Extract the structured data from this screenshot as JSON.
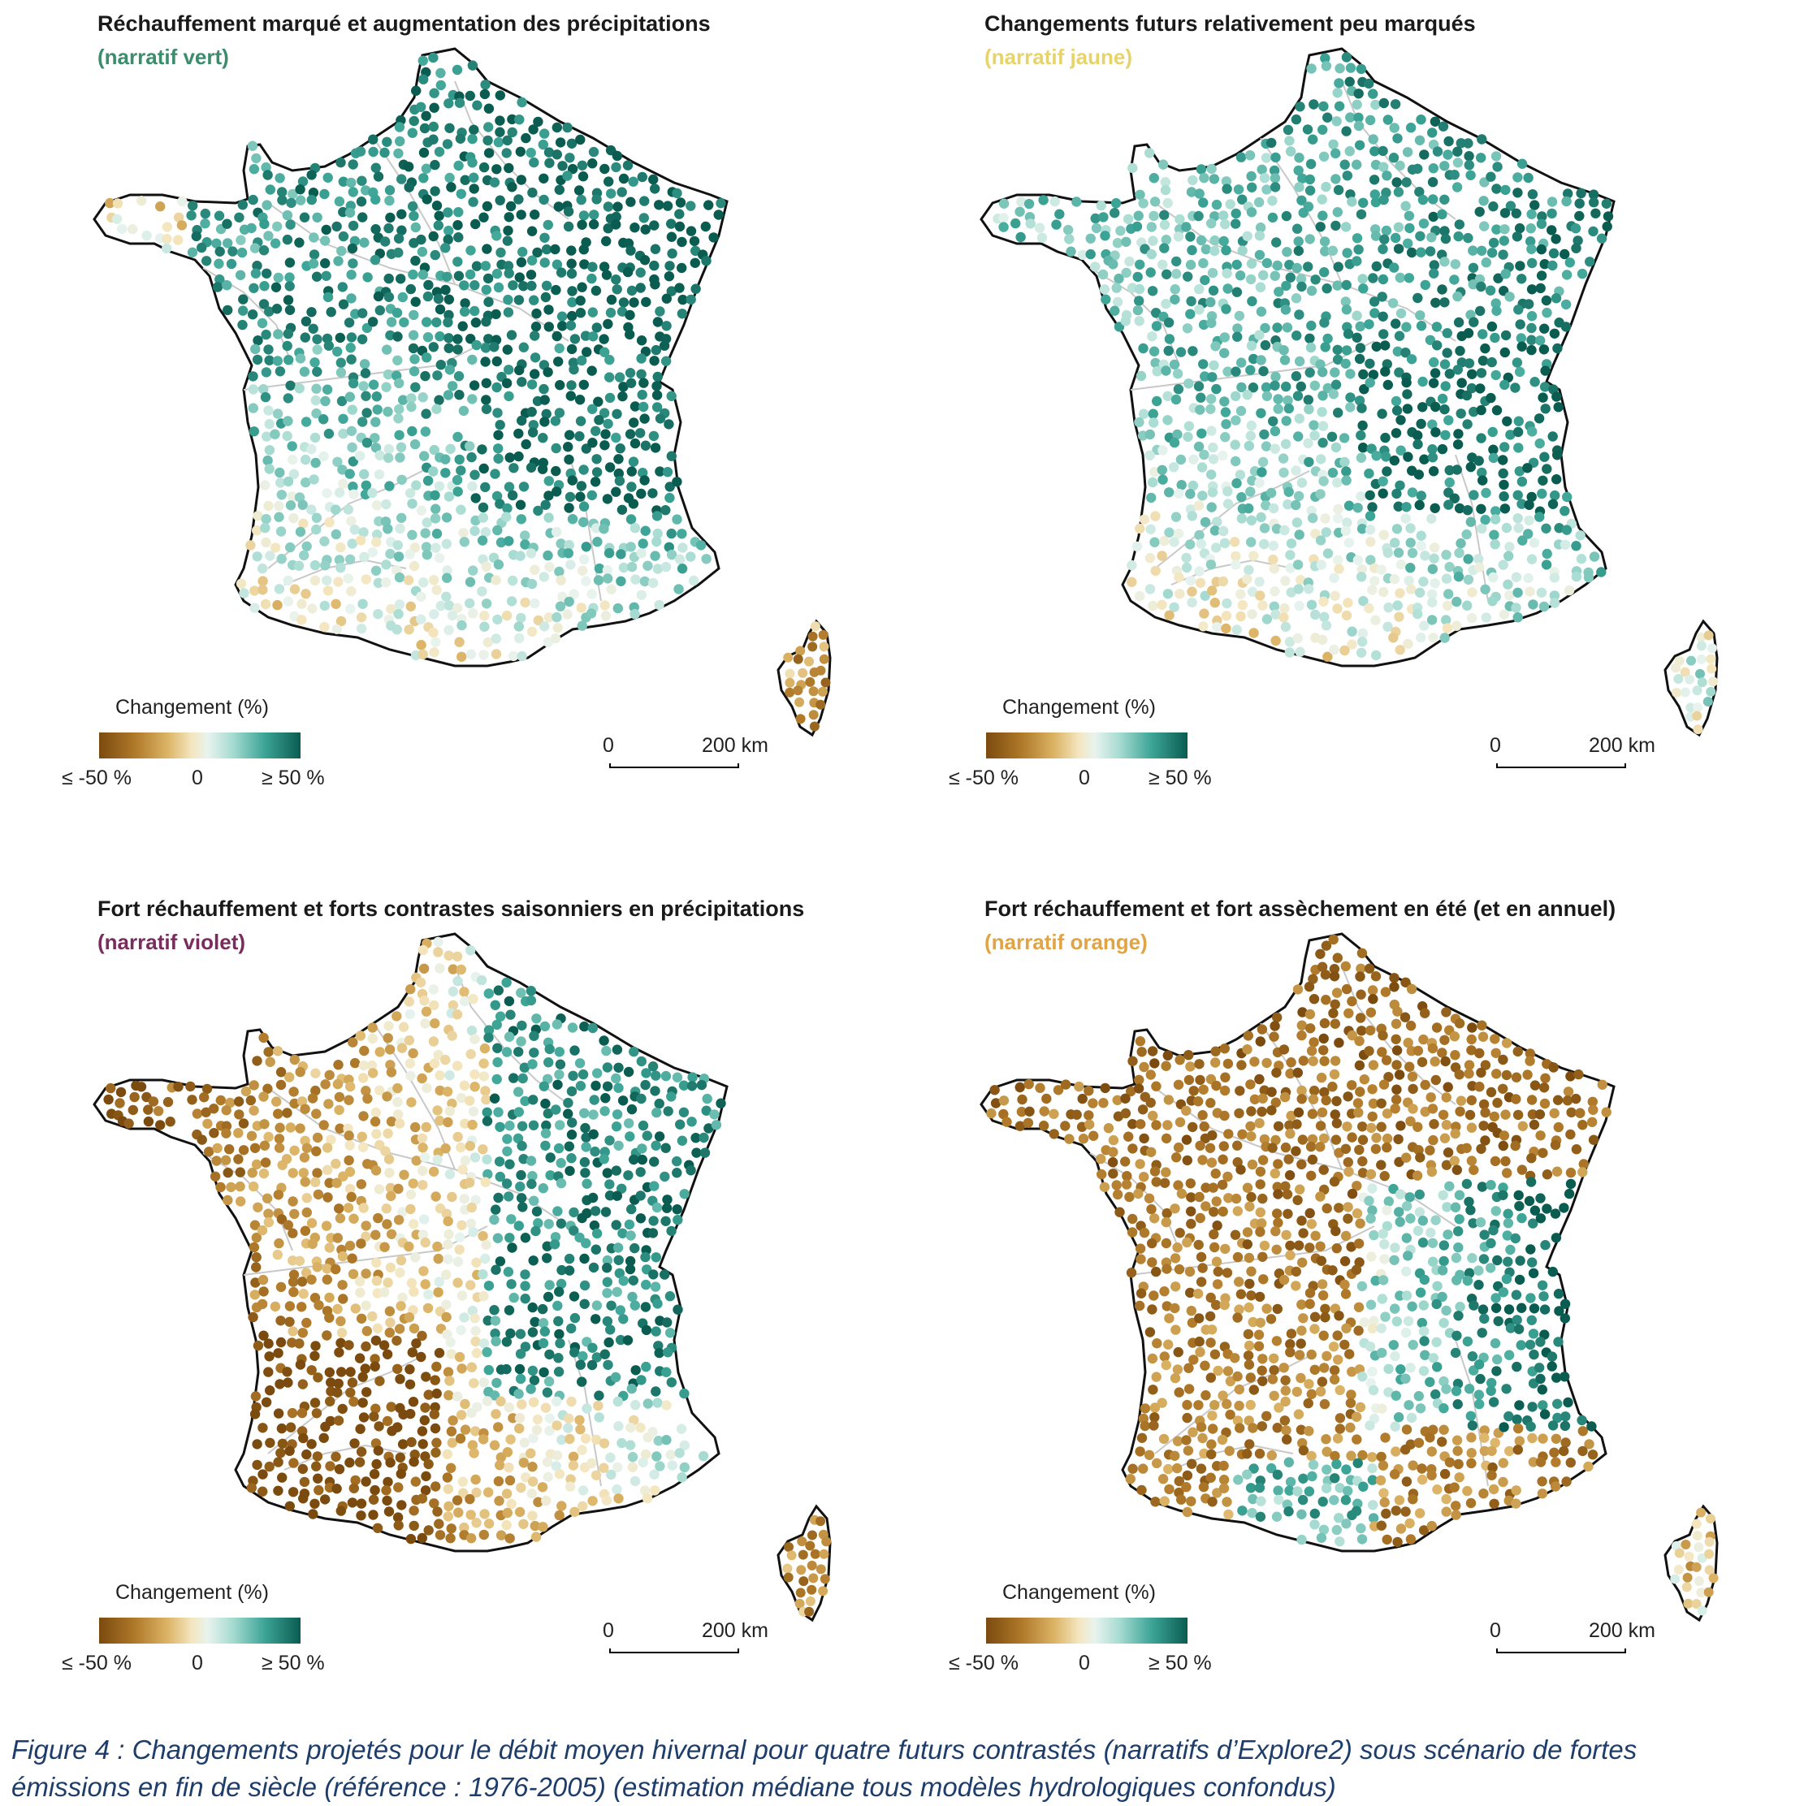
{
  "panels": [
    {
      "title": "Réchauffement marqué et augmentation des précipitations",
      "subtitle": "(narratif vert)",
      "subtitle_color": "#3c8c6e",
      "pattern": "vert"
    },
    {
      "title": "Changements futurs relativement peu marqués",
      "subtitle": "(narratif jaune)",
      "subtitle_color": "#e6d46a",
      "pattern": "jaune"
    },
    {
      "title": "Fort réchauffement et forts contrastes saisonniers en précipitations",
      "subtitle": "(narratif violet)",
      "subtitle_color": "#7a2d5c",
      "pattern": "violet"
    },
    {
      "title": "Fort réchauffement et fort assèchement en été (et en annuel)",
      "subtitle": "(narratif orange)",
      "subtitle_color": "#e0a444",
      "pattern": "orange"
    }
  ],
  "legend": {
    "title": "Changement (%)",
    "tick_min": "≤  -50 %",
    "tick_mid": "0",
    "tick_max": "≥  50 %",
    "color_min": "#7b4a0e",
    "color_mid": "#f4f1e6",
    "color_max": "#0a5c50"
  },
  "scale": {
    "zero": "0",
    "label": "200 km"
  },
  "caption": {
    "line1": "Figure 4 : Changements projetés pour le débit moyen hivernal pour quatre futurs contrastés (narratifs d’Explore2) sous scénario de fortes",
    "line2": "émissions en fin de siècle (référence : 1976-2005) (estimation médiane tous modèles hydrologiques confondus)"
  }
}
